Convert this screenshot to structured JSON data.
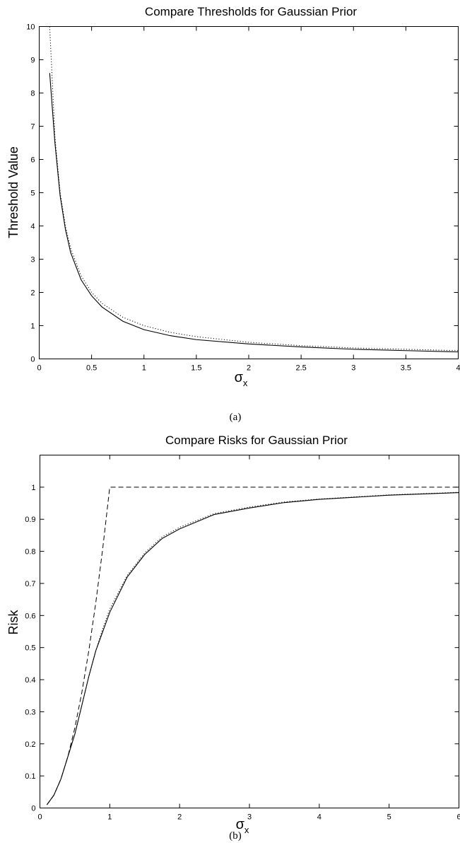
{
  "figure": {
    "caption_a": "(a)",
    "caption_b": "(b)"
  },
  "chart_data": [
    {
      "type": "line",
      "title": "Compare Thresholds for Gaussian Prior",
      "ylabel": "Threshold Value",
      "xlabel": "σ",
      "xlabel_sub": "x",
      "xlim": [
        0,
        4
      ],
      "ylim": [
        0,
        10
      ],
      "xticks": [
        0,
        0.5,
        1,
        1.5,
        2,
        2.5,
        3,
        3.5,
        4
      ],
      "xtick_labels": [
        "0",
        "0.5",
        "1",
        "1.5",
        "2",
        "2.5",
        "3",
        "3.5",
        "4"
      ],
      "yticks": [
        0,
        1,
        2,
        3,
        4,
        5,
        6,
        7,
        8,
        9,
        10
      ],
      "ytick_labels": [
        "0",
        "1",
        "2",
        "3",
        "4",
        "5",
        "6",
        "7",
        "8",
        "9",
        "10"
      ],
      "grid": false,
      "series": [
        {
          "style": "solid",
          "x": [
            0.1,
            0.15,
            0.2,
            0.25,
            0.3,
            0.4,
            0.5,
            0.6,
            0.8,
            1.0,
            1.25,
            1.5,
            2.0,
            2.5,
            3.0,
            3.5,
            4.0
          ],
          "y": [
            8.6,
            6.5,
            4.9,
            3.9,
            3.2,
            2.38,
            1.9,
            1.56,
            1.13,
            0.88,
            0.7,
            0.58,
            0.45,
            0.36,
            0.29,
            0.25,
            0.21
          ]
        },
        {
          "style": "dotted",
          "x": [
            0.1,
            0.15,
            0.2,
            0.25,
            0.3,
            0.4,
            0.5,
            0.6,
            0.8,
            1.0,
            1.25,
            1.5,
            2.0,
            2.5,
            3.0,
            3.5,
            4.0
          ],
          "y": [
            10.0,
            6.67,
            5.0,
            4.0,
            3.33,
            2.5,
            2.0,
            1.67,
            1.25,
            1.0,
            0.8,
            0.67,
            0.5,
            0.4,
            0.33,
            0.29,
            0.25
          ]
        }
      ]
    },
    {
      "type": "line",
      "title": "Compare Risks for Gaussian Prior",
      "ylabel": "Risk",
      "xlabel": "σ",
      "xlabel_sub": "x",
      "xlim": [
        0,
        6
      ],
      "ylim": [
        0,
        1.1
      ],
      "xticks": [
        0,
        1,
        2,
        3,
        4,
        5,
        6
      ],
      "xtick_labels": [
        "0",
        "1",
        "2",
        "3",
        "4",
        "5",
        "6"
      ],
      "yticks": [
        0,
        0.1,
        0.2,
        0.3,
        0.4,
        0.5,
        0.6,
        0.7,
        0.8,
        0.9,
        1
      ],
      "ytick_labels": [
        "0",
        "0.1",
        "0.2",
        "0.3",
        "0.4",
        "0.5",
        "0.6",
        "0.7",
        "0.8",
        "0.9",
        "1"
      ],
      "grid": false,
      "series": [
        {
          "style": "solid",
          "x": [
            0.1,
            0.2,
            0.3,
            0.4,
            0.5,
            0.6,
            0.7,
            0.8,
            0.9,
            1.0,
            1.25,
            1.5,
            1.75,
            2.0,
            2.5,
            3.0,
            3.5,
            4.0,
            5.0,
            6.0
          ],
          "y": [
            0.01,
            0.04,
            0.09,
            0.16,
            0.23,
            0.32,
            0.41,
            0.49,
            0.55,
            0.61,
            0.72,
            0.79,
            0.84,
            0.87,
            0.915,
            0.935,
            0.952,
            0.962,
            0.975,
            0.983
          ]
        },
        {
          "style": "dotted",
          "x": [
            0.1,
            0.2,
            0.3,
            0.4,
            0.5,
            0.6,
            0.7,
            0.8,
            0.9,
            1.0,
            1.25,
            1.5,
            1.75,
            2.0,
            2.5,
            3.0,
            3.5,
            4.0,
            5.0,
            6.0
          ],
          "y": [
            0.01,
            0.04,
            0.09,
            0.16,
            0.23,
            0.32,
            0.41,
            0.49,
            0.56,
            0.62,
            0.725,
            0.795,
            0.845,
            0.875,
            0.918,
            0.938,
            0.954,
            0.963,
            0.976,
            0.984
          ]
        },
        {
          "style": "dashed",
          "x": [
            0.1,
            0.2,
            0.3,
            0.4,
            0.5,
            0.6,
            0.7,
            0.8,
            0.9,
            1.0,
            1.5,
            2.0,
            3.0,
            4.0,
            5.0,
            6.0
          ],
          "y": [
            0.01,
            0.04,
            0.09,
            0.16,
            0.25,
            0.36,
            0.49,
            0.64,
            0.81,
            1.0,
            1.0,
            1.0,
            1.0,
            1.0,
            1.0,
            1.0
          ]
        }
      ]
    }
  ]
}
